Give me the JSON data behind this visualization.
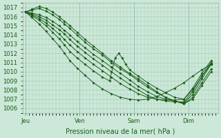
{
  "bg_color": "#cce8d8",
  "grid_color": "#aaccb8",
  "line_color": "#1a5c1a",
  "ylabel": "Pression niveau de la mer( hPa )",
  "ylim": [
    1005.5,
    1017.5
  ],
  "yticks": [
    1006,
    1007,
    1008,
    1009,
    1010,
    1011,
    1012,
    1013,
    1014,
    1015,
    1016,
    1017
  ],
  "xtick_labels": [
    "Jeu",
    "Ven",
    "Sam",
    "Dim"
  ],
  "xtick_positions": [
    0.0,
    1.0,
    2.0,
    3.0
  ],
  "xlim": [
    -0.05,
    3.55
  ],
  "lines": [
    {
      "x": [
        0.0,
        0.12,
        0.25,
        0.38,
        0.5,
        0.62,
        0.72,
        0.82,
        0.95,
        1.1,
        1.25,
        1.42,
        1.58,
        1.75,
        1.92,
        2.08,
        2.25,
        2.42,
        2.58,
        2.75,
        2.92,
        3.08,
        3.25,
        3.42
      ],
      "y": [
        1016.5,
        1016.8,
        1017.1,
        1016.9,
        1016.5,
        1016.0,
        1015.5,
        1015.0,
        1014.3,
        1013.5,
        1012.8,
        1012.0,
        1011.2,
        1010.5,
        1009.8,
        1009.2,
        1008.5,
        1007.8,
        1007.2,
        1006.8,
        1006.5,
        1007.0,
        1008.5,
        1010.0
      ]
    },
    {
      "x": [
        0.0,
        0.12,
        0.25,
        0.38,
        0.5,
        0.62,
        0.72,
        0.82,
        0.95,
        1.1,
        1.25,
        1.42,
        1.58,
        1.75,
        1.92,
        2.08,
        2.25,
        2.42,
        2.58,
        2.75,
        2.92,
        3.08,
        3.25,
        3.42
      ],
      "y": [
        1016.5,
        1016.7,
        1016.9,
        1016.6,
        1016.2,
        1015.7,
        1015.2,
        1014.7,
        1014.0,
        1013.2,
        1012.5,
        1011.8,
        1011.0,
        1010.3,
        1009.7,
        1009.0,
        1008.3,
        1007.7,
        1007.2,
        1006.8,
        1006.5,
        1007.2,
        1008.8,
        1010.3
      ]
    },
    {
      "x": [
        0.0,
        0.12,
        0.25,
        0.38,
        0.5,
        0.62,
        0.72,
        0.82,
        0.95,
        1.1,
        1.25,
        1.42,
        1.58,
        1.75,
        1.92,
        2.08,
        2.25,
        2.42,
        2.58,
        2.75,
        2.92,
        3.08,
        3.25,
        3.42
      ],
      "y": [
        1016.5,
        1016.4,
        1016.2,
        1015.9,
        1015.5,
        1015.0,
        1014.5,
        1014.0,
        1013.3,
        1012.6,
        1011.9,
        1011.2,
        1010.5,
        1009.8,
        1009.1,
        1008.4,
        1007.8,
        1007.3,
        1007.0,
        1006.8,
        1006.6,
        1007.5,
        1009.2,
        1010.8
      ]
    },
    {
      "x": [
        0.0,
        0.12,
        0.25,
        0.38,
        0.5,
        0.62,
        0.72,
        0.82,
        0.95,
        1.1,
        1.25,
        1.42,
        1.58,
        1.75,
        1.92,
        2.08,
        2.25,
        2.42,
        2.58,
        2.75,
        2.92,
        3.08,
        3.25,
        3.42
      ],
      "y": [
        1016.5,
        1016.3,
        1016.0,
        1015.6,
        1015.1,
        1014.6,
        1014.1,
        1013.5,
        1012.8,
        1012.1,
        1011.4,
        1010.7,
        1010.0,
        1009.3,
        1008.6,
        1008.0,
        1007.4,
        1007.0,
        1006.8,
        1006.7,
        1006.7,
        1007.8,
        1009.5,
        1011.0
      ]
    },
    {
      "x": [
        0.0,
        0.12,
        0.25,
        0.38,
        0.5,
        0.62,
        0.72,
        0.82,
        0.95,
        1.1,
        1.25,
        1.42,
        1.58,
        1.75,
        1.92,
        2.08,
        2.25,
        2.42,
        2.58,
        2.75,
        2.92,
        3.08,
        3.25,
        3.42
      ],
      "y": [
        1016.5,
        1016.2,
        1015.8,
        1015.3,
        1014.7,
        1014.1,
        1013.5,
        1012.9,
        1012.2,
        1011.5,
        1010.8,
        1010.1,
        1009.4,
        1008.7,
        1008.1,
        1007.6,
        1007.2,
        1007.0,
        1006.9,
        1006.9,
        1007.0,
        1008.2,
        1009.8,
        1011.2
      ]
    },
    {
      "x": [
        0.0,
        0.12,
        0.25,
        0.38,
        0.5,
        0.62,
        0.72,
        0.82,
        0.95,
        1.1,
        1.25,
        1.42,
        1.55,
        1.65,
        1.72,
        1.78,
        1.85,
        1.92,
        2.08,
        2.25,
        2.42,
        2.58,
        2.75,
        2.92,
        3.08,
        3.25,
        3.42
      ],
      "y": [
        1016.5,
        1016.1,
        1015.6,
        1015.0,
        1014.3,
        1013.6,
        1012.9,
        1012.2,
        1011.5,
        1010.8,
        1010.1,
        1009.4,
        1009.0,
        1011.5,
        1012.0,
        1011.5,
        1010.8,
        1010.2,
        1009.5,
        1008.8,
        1008.2,
        1007.7,
        1007.2,
        1007.0,
        1008.0,
        1009.5,
        1010.8
      ]
    },
    {
      "x": [
        0.0,
        0.12,
        0.25,
        0.38,
        0.5,
        0.62,
        0.72,
        0.82,
        0.95,
        1.1,
        1.25,
        1.42,
        1.58,
        1.75,
        1.92,
        2.08,
        2.25,
        2.42,
        2.58,
        2.75,
        2.92,
        3.08,
        3.25,
        3.42
      ],
      "y": [
        1016.5,
        1015.9,
        1015.2,
        1014.4,
        1013.6,
        1012.8,
        1012.0,
        1011.2,
        1010.4,
        1009.6,
        1008.8,
        1008.1,
        1007.6,
        1007.2,
        1007.0,
        1006.9,
        1007.0,
        1007.3,
        1007.7,
        1008.2,
        1008.8,
        1009.5,
        1010.2,
        1010.8
      ]
    }
  ],
  "marker_size": 1.8,
  "linewidth": 0.7,
  "tick_fontsize": 6,
  "label_fontsize": 7
}
